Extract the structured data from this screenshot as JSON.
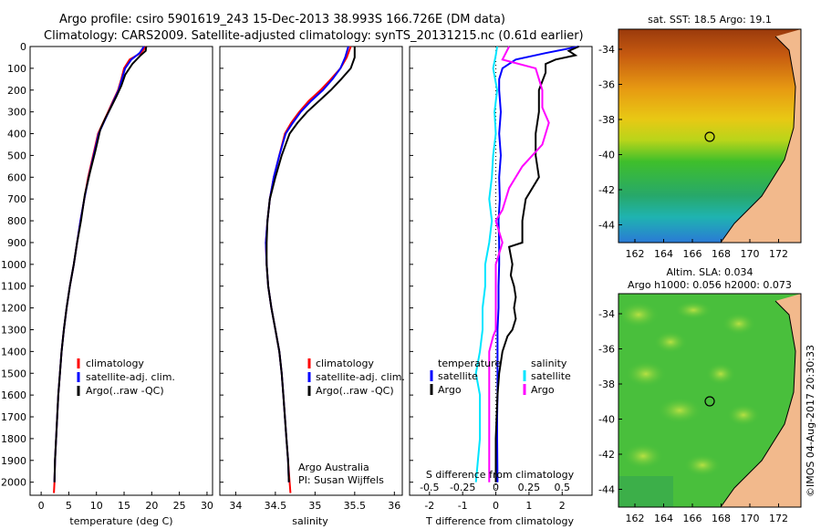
{
  "header": {
    "line1": "Argo profile: csiro 5901619_243 15-Dec-2013 38.993S 166.726E (DM data)",
    "line2": "Climatology: CARS2009. Satellite-adjusted climatology: synTS_20131215.nc (0.61d earlier)"
  },
  "colors": {
    "climatology": "#ff0000",
    "satellite": "#0000ff",
    "argo": "#000000",
    "salinity_satellite": "#00e5ff",
    "salinity_argo": "#ff00ff",
    "land": "#f2b98c"
  },
  "chart_data": [
    {
      "type": "line",
      "id": "temperature",
      "xlabel": "temperature (deg C)",
      "ylabel": "",
      "xlim": [
        -2,
        31
      ],
      "ylim": [
        2060,
        0
      ],
      "xticks": [
        0,
        5,
        10,
        15,
        20,
        25,
        30
      ],
      "yticks": [
        0,
        100,
        200,
        300,
        400,
        500,
        600,
        700,
        800,
        900,
        1000,
        1100,
        1200,
        1300,
        1400,
        1500,
        1600,
        1700,
        1800,
        1900,
        2000
      ],
      "legend": [
        "climatology",
        "satellite-adj. clim.",
        "Argo(..raw -QC)"
      ],
      "legend_placement": "lower-right",
      "series": [
        {
          "name": "climatology",
          "color": "#ff0000",
          "x": [
            19.0,
            18.0,
            16.0,
            15.0,
            14.5,
            13.9,
            13.0,
            12.1,
            11.2,
            10.3,
            9.4,
            8.5,
            7.8,
            7.1,
            6.5,
            5.9,
            5.2,
            4.6,
            4.1,
            3.7,
            3.4,
            3.1,
            2.9,
            2.7,
            2.5,
            2.4,
            2.3
          ],
          "y": [
            0,
            30,
            60,
            100,
            150,
            200,
            250,
            300,
            350,
            400,
            500,
            600,
            700,
            800,
            900,
            1000,
            1100,
            1200,
            1300,
            1400,
            1500,
            1600,
            1700,
            1800,
            1900,
            2000,
            2050
          ]
        },
        {
          "name": "satellite-adj. clim.",
          "color": "#0000ff",
          "x": [
            18.6,
            17.8,
            16.3,
            15.2,
            14.6,
            14.0,
            13.1,
            12.2,
            11.3,
            10.4,
            9.5,
            8.6,
            7.8,
            7.1,
            6.5,
            5.9,
            5.2,
            4.6,
            4.1,
            3.7,
            3.4,
            3.1,
            2.9,
            2.7,
            2.5,
            2.4
          ],
          "y": [
            0,
            30,
            60,
            100,
            150,
            200,
            250,
            300,
            350,
            400,
            500,
            600,
            700,
            800,
            900,
            1000,
            1100,
            1200,
            1300,
            1400,
            1500,
            1600,
            1700,
            1800,
            1900,
            2000
          ]
        },
        {
          "name": "Argo(..raw -QC)",
          "color": "#000000",
          "x": [
            19.0,
            18.9,
            18.0,
            16.5,
            15.2,
            14.5,
            13.6,
            12.6,
            11.6,
            10.7,
            9.8,
            8.8,
            7.9,
            7.2,
            6.5,
            5.9,
            5.2,
            4.6,
            4.1,
            3.7,
            3.4,
            3.1,
            2.9,
            2.7,
            2.5,
            2.4
          ],
          "y": [
            0,
            20,
            40,
            80,
            130,
            180,
            230,
            280,
            330,
            380,
            480,
            580,
            680,
            800,
            900,
            1000,
            1100,
            1200,
            1300,
            1400,
            1500,
            1600,
            1700,
            1800,
            1900,
            2000
          ]
        }
      ]
    },
    {
      "type": "line",
      "id": "salinity",
      "xlabel": "salinity",
      "ylabel": "",
      "xlim": [
        33.8,
        36.1
      ],
      "ylim": [
        2060,
        0
      ],
      "xticks": [
        34,
        34.5,
        35,
        35.5,
        36
      ],
      "yticks": [
        0,
        100,
        200,
        300,
        400,
        500,
        600,
        700,
        800,
        900,
        1000,
        1100,
        1200,
        1300,
        1400,
        1500,
        1600,
        1700,
        1800,
        1900,
        2000
      ],
      "legend": [
        "climatology",
        "satellite-adj. clim.",
        "Argo(..raw -QC)"
      ],
      "legend_placement": "lower-right",
      "annotations": [
        "Argo Australia",
        "PI: Susan Wijffels"
      ],
      "series": [
        {
          "name": "climatology",
          "color": "#ff0000",
          "x": [
            35.45,
            35.4,
            35.32,
            35.2,
            35.07,
            34.92,
            34.8,
            34.7,
            34.62,
            34.55,
            34.48,
            34.43,
            34.4,
            34.38,
            34.39,
            34.41,
            34.45,
            34.5,
            34.55,
            34.58,
            34.6,
            34.62,
            34.64,
            34.66,
            34.68,
            34.69
          ],
          "y": [
            0,
            50,
            100,
            150,
            200,
            250,
            300,
            350,
            400,
            500,
            600,
            700,
            800,
            900,
            1000,
            1100,
            1200,
            1300,
            1400,
            1500,
            1600,
            1700,
            1800,
            1900,
            2000,
            2050
          ]
        },
        {
          "name": "satellite-adj. clim.",
          "color": "#0000ff",
          "x": [
            35.42,
            35.38,
            35.32,
            35.22,
            35.1,
            34.95,
            34.82,
            34.72,
            34.63,
            34.55,
            34.48,
            34.43,
            34.4,
            34.38,
            34.39,
            34.41,
            34.45,
            34.5,
            34.55,
            34.58,
            34.6,
            34.62,
            34.64,
            34.66,
            34.67
          ],
          "y": [
            0,
            50,
            100,
            150,
            200,
            250,
            300,
            350,
            400,
            500,
            600,
            700,
            800,
            900,
            1000,
            1100,
            1200,
            1300,
            1400,
            1500,
            1600,
            1700,
            1800,
            1900,
            2000
          ]
        },
        {
          "name": "Argo(..raw -QC)",
          "color": "#000000",
          "x": [
            35.5,
            35.5,
            35.45,
            35.33,
            35.2,
            35.05,
            34.9,
            34.78,
            34.68,
            34.58,
            34.5,
            34.43,
            34.4,
            34.39,
            34.39,
            34.41,
            34.45,
            34.5,
            34.55,
            34.58,
            34.6,
            34.62,
            34.64,
            34.66,
            34.67
          ],
          "y": [
            0,
            50,
            100,
            150,
            200,
            250,
            300,
            350,
            400,
            500,
            600,
            700,
            800,
            900,
            1000,
            1100,
            1200,
            1300,
            1400,
            1500,
            1600,
            1700,
            1800,
            1900,
            2000
          ]
        }
      ]
    },
    {
      "type": "line",
      "id": "difference",
      "xlabel": "T difference from climatology",
      "top_xlabel": "S difference from climatology",
      "ylabel": "",
      "xlim": [
        -2.6,
        2.9
      ],
      "ylim": [
        2060,
        0
      ],
      "xticks": [
        -2,
        -1,
        0,
        1,
        2
      ],
      "top_xticks": [
        "-0.5",
        "-0.25",
        "0",
        "0.25",
        "0.5"
      ],
      "yticks": [
        0,
        100,
        200,
        300,
        400,
        500,
        600,
        700,
        800,
        900,
        1000,
        1100,
        1200,
        1300,
        1400,
        1500,
        1600,
        1700,
        1800,
        1900,
        2000
      ],
      "legend": {
        "temperature_heading": "temperature",
        "salinity_heading": "salinity",
        "temperature": [
          "satellite",
          "Argo"
        ],
        "salinity": [
          "satellite",
          "Argo"
        ]
      },
      "legend_placement": "lower-center",
      "series": [
        {
          "name": "temperature satellite",
          "color": "#0000ff",
          "x": [
            2.5,
            1.5,
            0.6,
            0.4,
            0.2,
            0.1,
            0.1,
            0.15,
            0.1,
            0.15,
            0.1,
            0.12,
            0.08,
            0.1,
            0.1,
            0.08,
            0.08,
            0.05,
            0.05,
            0.05,
            0.05,
            0.04,
            0.04,
            0.05
          ],
          "y": [
            0,
            30,
            60,
            80,
            100,
            150,
            200,
            300,
            400,
            500,
            600,
            700,
            800,
            900,
            1000,
            1100,
            1200,
            1300,
            1400,
            1500,
            1600,
            1700,
            1800,
            2000
          ]
        },
        {
          "name": "temperature Argo",
          "color": "#000000",
          "x": [
            2.5,
            2.2,
            2.4,
            1.8,
            1.5,
            1.5,
            1.3,
            1.3,
            1.2,
            1.2,
            1.3,
            0.9,
            0.8,
            0.8,
            0.4,
            0.5,
            0.45,
            0.55,
            0.6,
            0.55,
            0.6,
            0.5,
            0.35,
            0.2,
            0.1,
            0.05,
            0.0,
            0.0
          ],
          "y": [
            0,
            20,
            40,
            60,
            80,
            120,
            200,
            300,
            400,
            500,
            600,
            700,
            800,
            900,
            920,
            1000,
            1050,
            1100,
            1150,
            1200,
            1250,
            1300,
            1330,
            1400,
            1500,
            1600,
            1800,
            2000
          ]
        },
        {
          "name": "salinity satellite",
          "color": "#00e5ff",
          "x": [
            0.01,
            0.0,
            -0.02,
            0.01,
            -0.01,
            0.0,
            -0.02,
            -0.03,
            -0.05,
            -0.03,
            -0.05,
            -0.08,
            -0.08,
            -0.1,
            -0.1,
            -0.12,
            -0.15,
            -0.12,
            -0.12,
            -0.15
          ],
          "y": [
            0,
            40,
            100,
            200,
            300,
            400,
            500,
            600,
            700,
            800,
            900,
            1000,
            1100,
            1200,
            1300,
            1400,
            1500,
            1600,
            1800,
            2000
          ]
        },
        {
          "name": "salinity Argo",
          "color": "#ff00ff",
          "x": [
            0.1,
            0.05,
            0.3,
            0.35,
            0.35,
            0.4,
            0.35,
            0.2,
            0.1,
            0.05,
            0.0,
            0.05,
            0.0,
            0.0,
            0.0,
            0.0,
            -0.02,
            -0.05,
            -0.05,
            -0.05,
            -0.05
          ],
          "y": [
            0,
            60,
            100,
            200,
            280,
            350,
            450,
            550,
            650,
            750,
            800,
            900,
            1000,
            1100,
            1200,
            1300,
            1330,
            1400,
            1500,
            1700,
            2000
          ]
        }
      ]
    }
  ],
  "maps": {
    "sst": {
      "title": "sat. SST: 18.5 Argo: 19.1",
      "xticks": [
        "162",
        "164",
        "166",
        "168",
        "170",
        "172"
      ],
      "yticks": [
        "-34",
        "-36",
        "-38",
        "-40",
        "-42",
        "-44"
      ]
    },
    "sla": {
      "title_line1": "Altim. SLA: 0.034",
      "title_line2": "Argo h1000: 0.056 h2000: 0.073",
      "xticks": [
        "162",
        "164",
        "166",
        "168",
        "170",
        "172"
      ],
      "yticks": [
        "-34",
        "-36",
        "-38",
        "-40",
        "-42",
        "-44"
      ]
    }
  },
  "footer": {
    "credit": "©IMOS 04-Aug-2017 20:30:33"
  }
}
